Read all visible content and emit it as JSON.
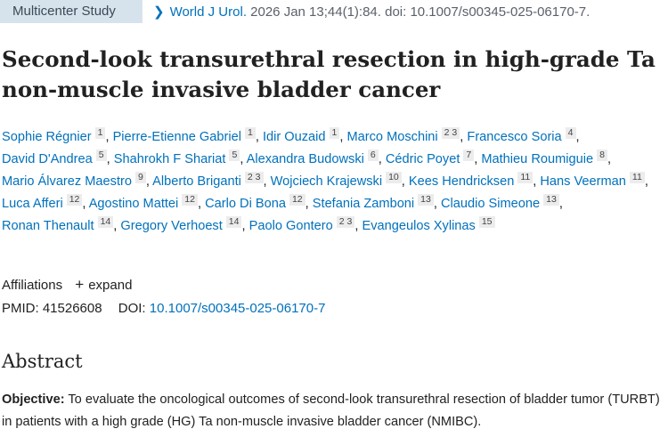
{
  "header": {
    "badge": "Multicenter Study",
    "citation_journal": "World J Urol.",
    "citation_rest": "2026 Jan 13;44(1):84. doi: 10.1007/s00345-025-06170-7."
  },
  "title": "Second-look transurethral resection in high-grade Ta non-muscle invasive bladder cancer",
  "authors": [
    {
      "name": "Sophie Régnier",
      "aff": "1"
    },
    {
      "name": "Pierre-Etienne Gabriel",
      "aff": "1"
    },
    {
      "name": "Idir Ouzaid",
      "aff": "1"
    },
    {
      "name": "Marco Moschini",
      "aff": "2 3"
    },
    {
      "name": "Francesco Soria",
      "aff": "4"
    },
    {
      "name": "David D'Andrea",
      "aff": "5"
    },
    {
      "name": "Shahrokh F Shariat",
      "aff": "5"
    },
    {
      "name": "Alexandra Budowski",
      "aff": "6"
    },
    {
      "name": "Cédric Poyet",
      "aff": "7"
    },
    {
      "name": "Mathieu Roumiguie",
      "aff": "8"
    },
    {
      "name": "Mario Álvarez Maestro",
      "aff": "9"
    },
    {
      "name": "Alberto Briganti",
      "aff": "2 3"
    },
    {
      "name": "Wojciech Krajewski",
      "aff": "10"
    },
    {
      "name": "Kees Hendricksen",
      "aff": "11"
    },
    {
      "name": "Hans Veerman",
      "aff": "11"
    },
    {
      "name": "Luca Afferi",
      "aff": "12"
    },
    {
      "name": "Agostino Mattei",
      "aff": "12"
    },
    {
      "name": "Carlo Di Bona",
      "aff": "12"
    },
    {
      "name": "Stefania Zamboni",
      "aff": "13"
    },
    {
      "name": "Claudio Simeone",
      "aff": "13"
    },
    {
      "name": "Ronan Thenault",
      "aff": "14"
    },
    {
      "name": "Gregory Verhoest",
      "aff": "14"
    },
    {
      "name": "Paolo Gontero",
      "aff": "2 3"
    },
    {
      "name": "Evangeulos Xylinas",
      "aff": "15"
    }
  ],
  "affiliations": {
    "label": "Affiliations",
    "expand": "expand",
    "icon": "plus-icon"
  },
  "ids": {
    "pmid_label": "PMID:",
    "pmid": "41526608",
    "doi_label": "DOI:",
    "doi": "10.1007/s00345-025-06170-7"
  },
  "abstract": {
    "heading": "Abstract",
    "objective_label": "Objective:",
    "objective_text": "To evaluate the oncological outcomes of second-look transurethral resection of bladder tumor (TURBT) in patients with a high grade (HG) Ta non-muscle invasive bladder cancer (NMIBC)."
  },
  "colors": {
    "link": "#0071bc",
    "badge_bg": "#d7e3ec",
    "aff_bg": "#ececec"
  }
}
